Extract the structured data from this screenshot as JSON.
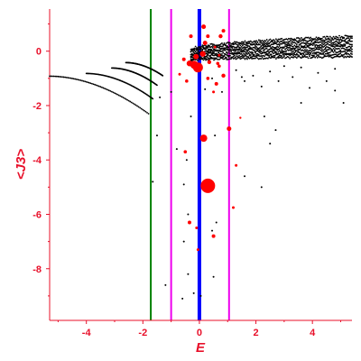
{
  "chart_data": {
    "type": "scatter",
    "title": "",
    "xlabel": "E",
    "ylabel": "<J3>",
    "xlim": [
      -5.3,
      5.4
    ],
    "ylim": [
      -9.9,
      1.55
    ],
    "xticks": [
      -4,
      -2,
      0,
      2,
      4
    ],
    "xtick_labels": [
      "-4",
      "-2",
      "0",
      "2",
      "4"
    ],
    "yticks": [
      0,
      -2,
      -4,
      -6,
      -8
    ],
    "ytick_labels": [
      "0",
      "-2",
      "-4",
      "-6",
      "-8"
    ],
    "grid": false,
    "legend": "none",
    "colors": {
      "axes": "#e8102a",
      "ticks": "#e8102a",
      "black_series": "#000000",
      "red_series": "#ff0000",
      "green_line": "#008000",
      "magenta_line": "#ee00ee",
      "blue_line": "#0000ff"
    },
    "vertical_lines": [
      {
        "x": -1.72,
        "color": "#008000",
        "width": "medium"
      },
      {
        "x": -1.0,
        "color": "#ee00ee",
        "width": "medium"
      },
      {
        "x": 0.0,
        "color": "#0000ff",
        "width": "thick"
      },
      {
        "x": 1.05,
        "color": "#ee00ee",
        "width": "medium"
      }
    ],
    "black_fans": [
      {
        "x_start": -5.3,
        "y_start": -0.92,
        "x_end": -1.8,
        "y_end": -2.3
      },
      {
        "x_start": -4.0,
        "y_start": -0.82,
        "x_end": -1.65,
        "y_end": -1.75
      },
      {
        "x_start": -3.1,
        "y_start": -0.62,
        "x_end": -1.5,
        "y_end": -1.25
      },
      {
        "x_start": -2.6,
        "y_start": -0.42,
        "x_end": -1.3,
        "y_end": -0.9
      }
    ],
    "black_band": {
      "x_min": -0.3,
      "x_max": 5.4,
      "y_min_start": -0.35,
      "y_max_start": 0.05,
      "y_min_end": -0.2,
      "y_max_end": 0.55
    },
    "black_scatter": [
      {
        "x": 0.2,
        "y": -1.4
      },
      {
        "x": 0.45,
        "y": -1.0
      },
      {
        "x": 0.8,
        "y": -1.5
      },
      {
        "x": 1.3,
        "y": -0.7
      },
      {
        "x": 1.6,
        "y": -1.1
      },
      {
        "x": 1.9,
        "y": -0.9
      },
      {
        "x": 2.2,
        "y": -1.3
      },
      {
        "x": 2.5,
        "y": -0.75
      },
      {
        "x": 2.8,
        "y": -1.1
      },
      {
        "x": 3.0,
        "y": -0.55
      },
      {
        "x": 3.3,
        "y": -0.95
      },
      {
        "x": 3.6,
        "y": -0.6
      },
      {
        "x": 3.9,
        "y": -1.35
      },
      {
        "x": 4.2,
        "y": -0.8
      },
      {
        "x": 4.5,
        "y": -1.1
      },
      {
        "x": 4.8,
        "y": -0.65
      },
      {
        "x": 5.1,
        "y": -1.9
      },
      {
        "x": 2.7,
        "y": -2.9
      },
      {
        "x": 3.6,
        "y": -1.9
      },
      {
        "x": 4.8,
        "y": -1.45
      },
      {
        "x": 1.5,
        "y": -0.95
      },
      {
        "x": -0.3,
        "y": -2.4
      },
      {
        "x": -0.45,
        "y": -4.0
      },
      {
        "x": -0.55,
        "y": -4.9
      },
      {
        "x": -0.4,
        "y": -6.0
      },
      {
        "x": -0.55,
        "y": -7.0
      },
      {
        "x": -0.4,
        "y": -8.2
      },
      {
        "x": -0.6,
        "y": -9.1
      },
      {
        "x": -1.2,
        "y": -8.6
      },
      {
        "x": -1.5,
        "y": -3.1
      },
      {
        "x": -1.65,
        "y": -4.8
      },
      {
        "x": -0.8,
        "y": -3.6
      },
      {
        "x": 0.45,
        "y": -6.6
      },
      {
        "x": 0.5,
        "y": -8.3
      },
      {
        "x": 0.55,
        "y": -3.1
      },
      {
        "x": 0.6,
        "y": -6.3
      },
      {
        "x": 1.6,
        "y": -4.6
      },
      {
        "x": 2.2,
        "y": -5.0
      },
      {
        "x": 2.3,
        "y": -2.4
      },
      {
        "x": 2.5,
        "y": -3.4
      },
      {
        "x": -0.2,
        "y": -8.9
      },
      {
        "x": 0.05,
        "y": -9.0
      },
      {
        "x": -1.4,
        "y": -1.7
      },
      {
        "x": -1.0,
        "y": -1.5
      }
    ],
    "red_points": [
      {
        "x": -0.55,
        "y": -0.3,
        "s": 2.0
      },
      {
        "x": -0.35,
        "y": -0.45,
        "s": 3.2
      },
      {
        "x": -0.18,
        "y": -0.5,
        "s": 4.5
      },
      {
        "x": -0.05,
        "y": -0.6,
        "s": 5.5
      },
      {
        "x": -0.12,
        "y": -0.2,
        "s": 3.0
      },
      {
        "x": 0.12,
        "y": -0.1,
        "s": 3.2
      },
      {
        "x": 0.2,
        "y": 0.3,
        "s": 2.5
      },
      {
        "x": 0.35,
        "y": -0.4,
        "s": 2.2
      },
      {
        "x": -0.3,
        "y": 0.55,
        "s": 2.0
      },
      {
        "x": 0.15,
        "y": 0.9,
        "s": 2.5
      },
      {
        "x": 0.3,
        "y": 0.55,
        "s": 2.0
      },
      {
        "x": 0.75,
        "y": 0.55,
        "s": 2.2
      },
      {
        "x": 0.85,
        "y": 0.75,
        "s": 2.0
      },
      {
        "x": 0.65,
        "y": -0.45,
        "s": 1.8
      },
      {
        "x": 0.7,
        "y": -0.15,
        "s": 1.5
      },
      {
        "x": 0.55,
        "y": 0.15,
        "s": 1.5
      },
      {
        "x": 0.85,
        "y": -0.9,
        "s": 2.2
      },
      {
        "x": 0.6,
        "y": -1.2,
        "s": 2.0
      },
      {
        "x": -0.45,
        "y": -1.1,
        "s": 1.8
      },
      {
        "x": -0.7,
        "y": -0.85,
        "s": 1.5
      },
      {
        "x": 0.3,
        "y": -1.0,
        "s": 1.8
      },
      {
        "x": 0.5,
        "y": -1.5,
        "s": 1.5
      },
      {
        "x": 0.15,
        "y": -3.2,
        "s": 4.0
      },
      {
        "x": 1.05,
        "y": -2.85,
        "s": 2.5
      },
      {
        "x": -0.5,
        "y": -3.7,
        "s": 1.8
      },
      {
        "x": 1.3,
        "y": -4.2,
        "s": 1.5
      },
      {
        "x": 0.3,
        "y": -4.95,
        "s": 8.0
      },
      {
        "x": -0.35,
        "y": -6.3,
        "s": 2.0
      },
      {
        "x": 0.5,
        "y": -6.8,
        "s": 2.0
      },
      {
        "x": -0.1,
        "y": -6.5,
        "s": 1.5
      },
      {
        "x": 1.2,
        "y": -5.75,
        "s": 1.5
      },
      {
        "x": -0.05,
        "y": -7.3,
        "s": 1.5
      },
      {
        "x": 1.45,
        "y": -2.45,
        "s": 1.2
      },
      {
        "x": 0.7,
        "y": -0.55,
        "s": 1.8
      }
    ]
  }
}
